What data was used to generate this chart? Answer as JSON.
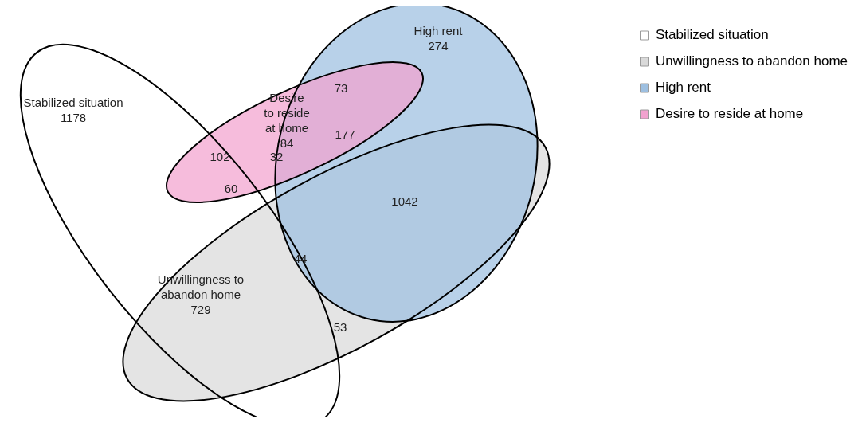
{
  "chart_data": {
    "type": "other",
    "categories": [
      null
    ],
    "series": [
      {
        "name": "Stabilized situation",
        "color": "#ffffff",
        "values": [
          1178
        ]
      },
      {
        "name": "Unwillingness to abandon home",
        "color": "#d9d9d9",
        "values": [
          729
        ]
      },
      {
        "name": "High rent",
        "color": "#9dbfe0",
        "values": [
          274
        ]
      },
      {
        "name": "Desire to reside at home",
        "color": "#f2a2cf",
        "values": [
          84
        ]
      }
    ],
    "annotations": [
      "102",
      "32",
      "60",
      "73",
      "177",
      "1042",
      "44",
      "53"
    ],
    "data_labels": true,
    "legend": "right"
  }
}
